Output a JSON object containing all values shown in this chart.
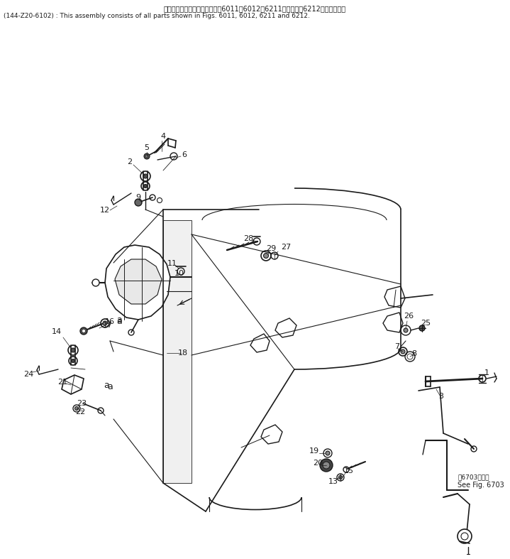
{
  "title_line1": "このアセンブリの構成部品は第6011、6012、6211図および第6212図を含みます",
  "title_line2": "(144-Z20-6102) : This assembly consists of all parts shown in Figs. 6011, 6012, 6211 and 6212.",
  "see_fig_jp": "第6703図参照",
  "see_fig_en": "See Fig. 6703",
  "bg_color": "#ffffff",
  "line_color": "#1a1a1a",
  "text_color": "#1a1a1a",
  "title_fontsize": 7.0,
  "label_fontsize": 8.0,
  "fig_width": 7.19,
  "fig_height": 7.87,
  "dpi": 100
}
